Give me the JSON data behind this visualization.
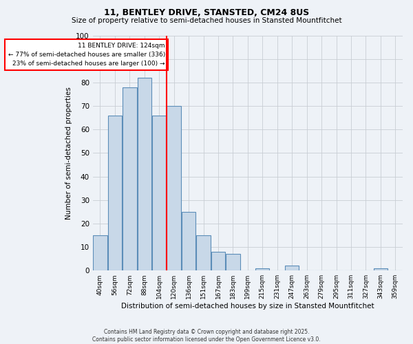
{
  "title1": "11, BENTLEY DRIVE, STANSTED, CM24 8US",
  "title2": "Size of property relative to semi-detached houses in Stansted Mountfitchet",
  "xlabel": "Distribution of semi-detached houses by size in Stansted Mountfitchet",
  "ylabel": "Number of semi-detached properties",
  "categories": [
    "40sqm",
    "56sqm",
    "72sqm",
    "88sqm",
    "104sqm",
    "120sqm",
    "136sqm",
    "151sqm",
    "167sqm",
    "183sqm",
    "199sqm",
    "215sqm",
    "231sqm",
    "247sqm",
    "263sqm",
    "279sqm",
    "295sqm",
    "311sqm",
    "327sqm",
    "343sqm",
    "359sqm"
  ],
  "values": [
    15,
    66,
    78,
    82,
    66,
    70,
    25,
    15,
    8,
    7,
    0,
    1,
    0,
    2,
    0,
    0,
    0,
    0,
    0,
    1,
    0
  ],
  "bar_color": "#c8d8e8",
  "bar_edge_color": "#5b8db8",
  "property_line_bar_index": 5,
  "annotation_line1": "11 BENTLEY DRIVE: 124sqm",
  "annotation_line2": "← 77% of semi-detached houses are smaller (336)",
  "annotation_line3": "23% of semi-detached houses are larger (100) →",
  "ylim": [
    0,
    100
  ],
  "background_color": "#eef2f7",
  "footer": "Contains HM Land Registry data © Crown copyright and database right 2025.\nContains public sector information licensed under the Open Government Licence v3.0.",
  "grid_color": "#c8cdd4",
  "title1_fontsize": 9,
  "title2_fontsize": 7.5,
  "ylabel_fontsize": 7.5,
  "xlabel_fontsize": 7.5,
  "tick_fontsize": 6.5,
  "annotation_fontsize": 6.5,
  "footer_fontsize": 5.5
}
